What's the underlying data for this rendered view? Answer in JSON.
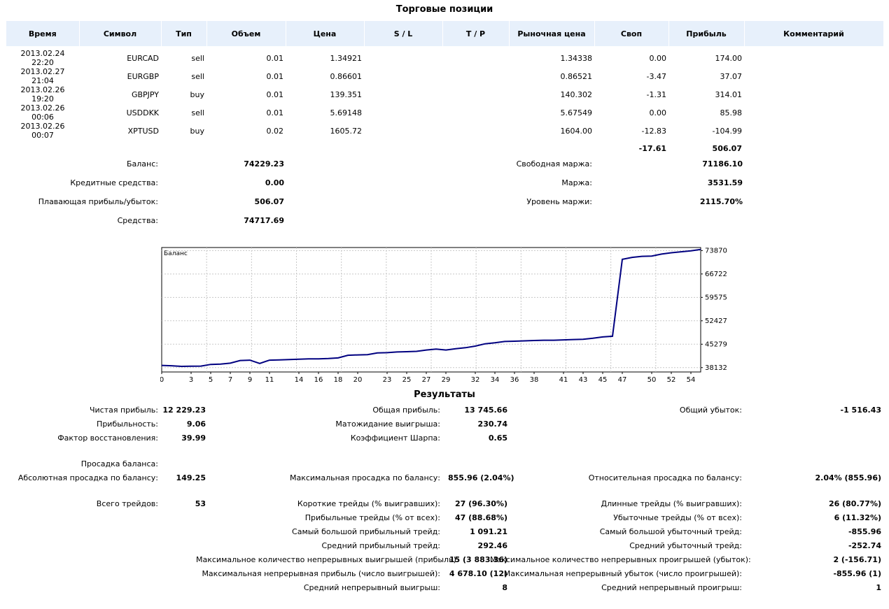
{
  "title": "Торговые позиции",
  "positions": {
    "headers": [
      "Время",
      "Символ",
      "Тип",
      "Объем",
      "Цена",
      "S / L",
      "T / P",
      "Рыночная цена",
      "Своп",
      "Прибыль",
      "Комментарий"
    ],
    "rows": [
      {
        "time": "2013.02.24 22:20",
        "symbol": "EURCAD",
        "type": "sell",
        "volume": "0.01",
        "price": "1.34921",
        "sl": "",
        "tp": "",
        "market": "1.34338",
        "swap": "0.00",
        "profit": "174.00",
        "comment": ""
      },
      {
        "time": "2013.02.27 21:04",
        "symbol": "EURGBP",
        "type": "sell",
        "volume": "0.01",
        "price": "0.86601",
        "sl": "",
        "tp": "",
        "market": "0.86521",
        "swap": "-3.47",
        "profit": "37.07",
        "comment": ""
      },
      {
        "time": "2013.02.26 19:20",
        "symbol": "GBPJPY",
        "type": "buy",
        "volume": "0.01",
        "price": "139.351",
        "sl": "",
        "tp": "",
        "market": "140.302",
        "swap": "-1.31",
        "profit": "314.01",
        "comment": ""
      },
      {
        "time": "2013.02.26 00:06",
        "symbol": "USDDKK",
        "type": "sell",
        "volume": "0.01",
        "price": "5.69148",
        "sl": "",
        "tp": "",
        "market": "5.67549",
        "swap": "0.00",
        "profit": "85.98",
        "comment": ""
      },
      {
        "time": "2013.02.26 00:07",
        "symbol": "XPTUSD",
        "type": "buy",
        "volume": "0.02",
        "price": "1605.72",
        "sl": "",
        "tp": "",
        "market": "1604.00",
        "swap": "-12.83",
        "profit": "-104.99",
        "comment": ""
      }
    ],
    "total_swap": "-17.61",
    "total_profit": "506.07"
  },
  "account": {
    "balance_label": "Баланс:",
    "balance": "74229.23",
    "credit_label": "Кредитные средства:",
    "credit": "0.00",
    "floating_label": "Плавающая прибыль/убыток:",
    "floating": "506.07",
    "equity_label": "Средства:",
    "equity": "74717.69",
    "free_margin_label": "Свободная маржа:",
    "free_margin": "71186.10",
    "margin_label": "Маржа:",
    "margin": "3531.59",
    "margin_level_label": "Уровень маржи:",
    "margin_level": "2115.70%"
  },
  "chart_data": {
    "type": "line",
    "title": "Баланс",
    "xlabel": "",
    "ylabel": "",
    "x_ticks": [
      0,
      3,
      5,
      7,
      9,
      11,
      14,
      16,
      18,
      20,
      23,
      25,
      27,
      29,
      32,
      34,
      36,
      38,
      41,
      43,
      45,
      47,
      50,
      52,
      54
    ],
    "y_ticks": [
      38132,
      45279,
      52427,
      59575,
      66722,
      73870
    ],
    "xlim": [
      0,
      55
    ],
    "ylim": [
      36800,
      74800
    ],
    "grid": true,
    "color": "#000080",
    "x": [
      0,
      1,
      2,
      3,
      4,
      5,
      6,
      7,
      8,
      9,
      10,
      11,
      12,
      13,
      14,
      15,
      16,
      17,
      18,
      19,
      20,
      21,
      22,
      23,
      24,
      25,
      26,
      27,
      28,
      29,
      30,
      31,
      32,
      33,
      34,
      35,
      36,
      37,
      38,
      39,
      40,
      41,
      42,
      43,
      44,
      45,
      46,
      47,
      48,
      49,
      50,
      51,
      52,
      53,
      54,
      55
    ],
    "values": [
      38800,
      38700,
      38500,
      38550,
      38600,
      39100,
      39200,
      39500,
      40300,
      40400,
      39400,
      40400,
      40500,
      40600,
      40700,
      40800,
      40800,
      40900,
      41100,
      41900,
      42000,
      42100,
      42600,
      42700,
      42900,
      43000,
      43100,
      43500,
      43800,
      43500,
      43900,
      44200,
      44700,
      45400,
      45700,
      46100,
      46200,
      46300,
      46400,
      46500,
      46500,
      46600,
      46700,
      46800,
      47100,
      47500,
      47700,
      71200,
      71800,
      72100,
      72200,
      72800,
      73200,
      73500,
      73800,
      74229
    ]
  },
  "results": {
    "title": "Результаты",
    "net_profit_label": "Чистая прибыль:",
    "net_profit": "12 229.23",
    "gross_profit_label": "Общая прибыль:",
    "gross_profit": "13 745.66",
    "gross_loss_label": "Общий убыток:",
    "gross_loss": "-1 516.43",
    "profit_factor_label": "Прибыльность:",
    "profit_factor": "9.06",
    "expected_payoff_label": "Матожидание выигрыша:",
    "expected_payoff": "230.74",
    "recovery_label": "Фактор восстановления:",
    "recovery": "39.99",
    "sharpe_label": "Коэффициент Шарпа:",
    "sharpe": "0.65",
    "drawdown_label": "Просадка баланса:",
    "abs_dd_label": "Абсолютная просадка по балансу:",
    "abs_dd": "149.25",
    "max_dd_label": "Максимальная просадка по балансу:",
    "max_dd": "855.96 (2.04%)",
    "rel_dd_label": "Относительная просадка по балансу:",
    "rel_dd": "2.04% (855.96)",
    "total_trades_label": "Всего трейдов:",
    "total_trades": "53",
    "short_label": "Короткие трейды (% выигравших):",
    "short": "27 (96.30%)",
    "long_label": "Длинные трейды (% выигравших):",
    "long": "26 (80.77%)",
    "profit_trades_label": "Прибыльные трейды (% от всех):",
    "profit_trades": "47 (88.68%)",
    "loss_trades_label": "Убыточные трейды (% от всех):",
    "loss_trades": "6 (11.32%)",
    "largest_profit_label": "Самый большой прибыльный трейд:",
    "largest_profit": "1 091.21",
    "largest_loss_label": "Самый большой убыточный трейд:",
    "largest_loss": "-855.96",
    "avg_profit_label": "Средний прибыльный трейд:",
    "avg_profit": "292.46",
    "avg_loss_label": "Средний убыточный трейд:",
    "avg_loss": "-252.74",
    "max_cons_wins_label": "Максимальное количество непрерывных выигрышей (прибыль):",
    "max_cons_wins": "15 (3 883.36)",
    "max_cons_losses_label": "Максимальное количество непрерывных проигрышей (убыток):",
    "max_cons_losses": "2 (-156.71)",
    "max_cons_profit_label": "Максимальная непрерывная прибыль (число выигрышей):",
    "max_cons_profit": "4 678.10 (12)",
    "max_cons_loss_label": "Максимальная непрерывный убыток (число проигрышей):",
    "max_cons_loss": "-855.96 (1)",
    "avg_cons_wins_label": "Средний непрерывный выигрыш:",
    "avg_cons_wins": "8",
    "avg_cons_losses_label": "Средний непрерывный проигрыш:",
    "avg_cons_losses": "1"
  }
}
